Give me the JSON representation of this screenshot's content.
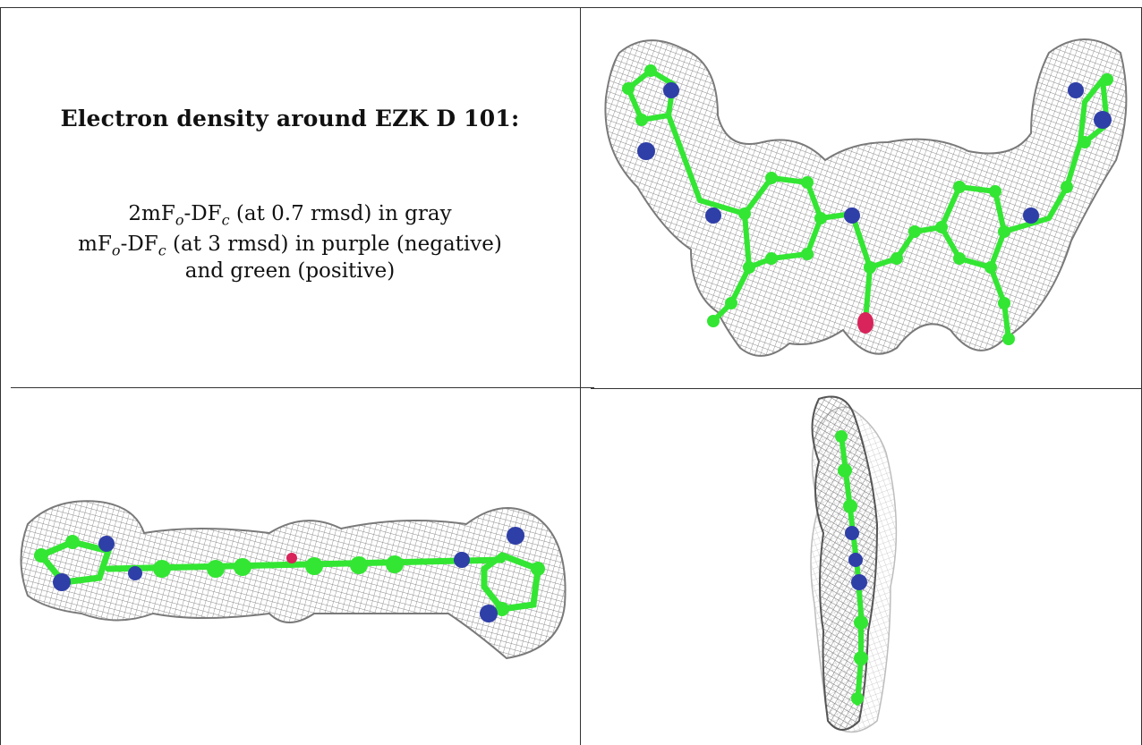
{
  "caption": {
    "title": "Electron density around EZK D 101:",
    "line1_prefix": "2mF",
    "line1_sub1": "o",
    "line1_mid": "-DF",
    "line1_sub2": "c",
    "line1_suffix": " (at 0.7 rmsd) in gray",
    "line2_prefix": "mF",
    "line2_sub1": "o",
    "line2_mid": "-DF",
    "line2_sub2": "c",
    "line2_suffix": " (at 3 rmsd) in purple (negative)",
    "line3": "and green (positive)"
  },
  "colors": {
    "mesh": "#8a8a8a",
    "carbon": "#33e633",
    "nitrogen": "#2f3fa8",
    "oxygen": "#d8245a",
    "border": "#333333"
  },
  "panels": {
    "top_right": "electron-density-top-view",
    "bottom_left": "electron-density-side-view",
    "bottom_right": "electron-density-end-view"
  }
}
